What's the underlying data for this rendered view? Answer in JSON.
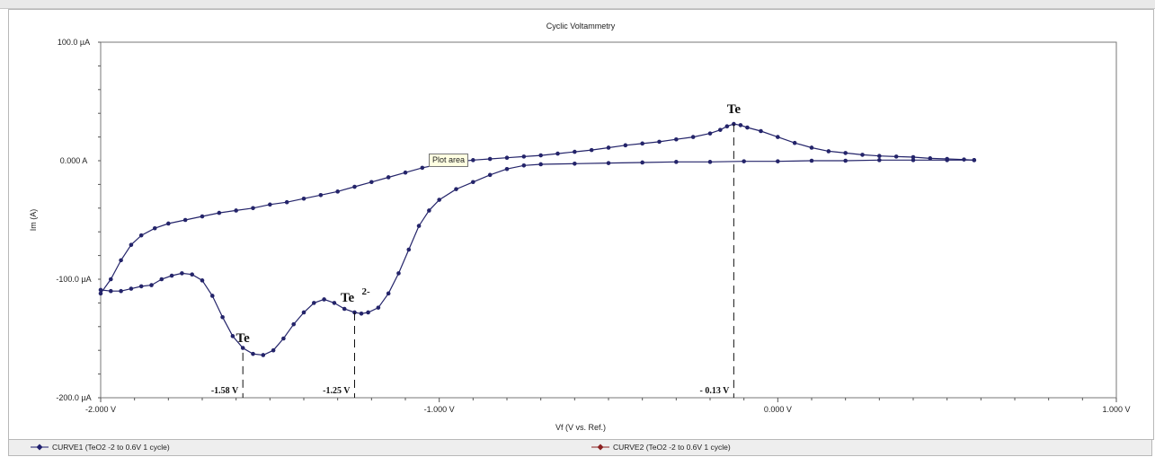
{
  "chart_data": {
    "type": "line",
    "title": "Cyclic Voltammetry",
    "xlabel": "Vf (V vs. Ref.)",
    "ylabel": "Im (A)",
    "xlim": [
      -2.0,
      1.0
    ],
    "ylim": [
      -200,
      100
    ],
    "x_tick_values": [
      -2.0,
      -1.0,
      0.0,
      1.0
    ],
    "x_tick_labels": [
      "-2.000 V",
      "-1.000 V",
      "0.000 V",
      "1.000 V"
    ],
    "y_tick_values": [
      100,
      0,
      -100,
      -200
    ],
    "y_tick_labels": [
      "100.0 µA",
      "0.000 A",
      "-100.0 µA",
      "-200.0 µA"
    ],
    "colors": {
      "curve1": "#1f1f6e",
      "curve2": "#8b2020",
      "marker": "#24246a"
    },
    "series": [
      {
        "name": "CURVE1 (TeO2 -2 to 0.6V 1 cycle)",
        "x": [
          -2.0,
          -1.97,
          -1.94,
          -1.91,
          -1.88,
          -1.84,
          -1.8,
          -1.75,
          -1.7,
          -1.65,
          -1.6,
          -1.55,
          -1.5,
          -1.45,
          -1.4,
          -1.35,
          -1.3,
          -1.25,
          -1.2,
          -1.15,
          -1.1,
          -1.05,
          -1.0,
          -0.95,
          -0.9,
          -0.85,
          -0.8,
          -0.75,
          -0.7,
          -0.65,
          -0.6,
          -0.55,
          -0.5,
          -0.45,
          -0.4,
          -0.35,
          -0.3,
          -0.25,
          -0.2,
          -0.17,
          -0.15,
          -0.13,
          -0.11,
          -0.09,
          -0.05,
          0.0,
          0.05,
          0.1,
          0.15,
          0.2,
          0.25,
          0.3,
          0.35,
          0.4,
          0.45,
          0.5,
          0.55,
          0.58
        ],
        "y": [
          -112,
          -100,
          -84,
          -71,
          -63,
          -57,
          -53,
          -50,
          -47,
          -44,
          -42,
          -40,
          -37,
          -35,
          -32,
          -29,
          -26,
          -22,
          -18,
          -14,
          -10,
          -6,
          -3,
          -1,
          0.5,
          1.5,
          2.5,
          3.5,
          4.5,
          6,
          7.5,
          9,
          11,
          13,
          14.5,
          16,
          18,
          20,
          23,
          26,
          29,
          31,
          30,
          28,
          25,
          20,
          15,
          11,
          8,
          6.5,
          5,
          4,
          3.5,
          3,
          2,
          1.5,
          1,
          0.5
        ]
      },
      {
        "name": "CURVE2 (TeO2 -2 to 0.6V 1 cycle)",
        "x": [
          0.58,
          0.5,
          0.4,
          0.3,
          0.2,
          0.1,
          0.0,
          -0.1,
          -0.2,
          -0.3,
          -0.4,
          -0.5,
          -0.6,
          -0.7,
          -0.75,
          -0.8,
          -0.85,
          -0.9,
          -0.95,
          -1.0,
          -1.03,
          -1.06,
          -1.09,
          -1.12,
          -1.15,
          -1.18,
          -1.21,
          -1.23,
          -1.25,
          -1.28,
          -1.31,
          -1.34,
          -1.37,
          -1.4,
          -1.43,
          -1.46,
          -1.49,
          -1.52,
          -1.55,
          -1.58,
          -1.61,
          -1.64,
          -1.67,
          -1.7,
          -1.73,
          -1.76,
          -1.79,
          -1.82,
          -1.85,
          -1.88,
          -1.91,
          -1.94,
          -1.97,
          -2.0
        ],
        "y": [
          0.5,
          0.5,
          0.5,
          0.5,
          0,
          0,
          -0.5,
          -0.5,
          -1,
          -1,
          -1.5,
          -2,
          -2.5,
          -3,
          -4,
          -7,
          -12,
          -18,
          -24,
          -33,
          -42,
          -55,
          -75,
          -95,
          -112,
          -124,
          -128,
          -129,
          -128,
          -125,
          -120,
          -117,
          -120,
          -128,
          -138,
          -150,
          -160,
          -164,
          -163,
          -158,
          -148,
          -132,
          -114,
          -101,
          -96,
          -95,
          -97,
          -100,
          -105,
          -106,
          -108,
          -110,
          -110,
          -109
        ]
      }
    ],
    "annotations": [
      {
        "label": "Te",
        "x": -1.58,
        "y": -162,
        "voltage_label": "-1.58 V"
      },
      {
        "label": "Te",
        "superscript": "2-",
        "x": -1.25,
        "y": -128,
        "voltage_label": "-1.25 V"
      },
      {
        "label": "Te",
        "x": -0.13,
        "y": 31,
        "voltage_label": "- 0.13 V"
      }
    ],
    "legend_position": "bottom",
    "grid": false
  },
  "tooltip": {
    "text": "Plot area"
  },
  "legend": [
    {
      "label": "CURVE1 (TeO2 -2 to 0.6V 1 cycle)"
    },
    {
      "label": "CURVE2 (TeO2 -2 to 0.6V 1 cycle)"
    }
  ]
}
